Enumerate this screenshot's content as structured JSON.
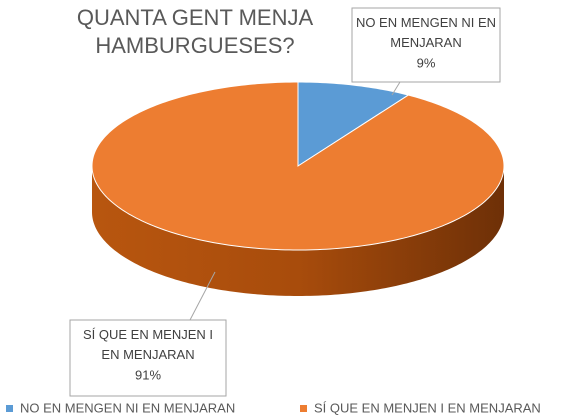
{
  "chart_data": {
    "type": "pie",
    "title": "QUANTA GENT MENJA HAMBURGUESES?",
    "categories": [
      "NO EN MENGEN NI EN MENJARAN",
      "SÍ QUE EN MENJEN I EN MENJARAN"
    ],
    "values": [
      9,
      91
    ],
    "value_labels": [
      "9%",
      "91%"
    ],
    "colors": [
      "#5b9bd5",
      "#ed7d31"
    ],
    "legend": "bottom",
    "three_d": true
  }
}
